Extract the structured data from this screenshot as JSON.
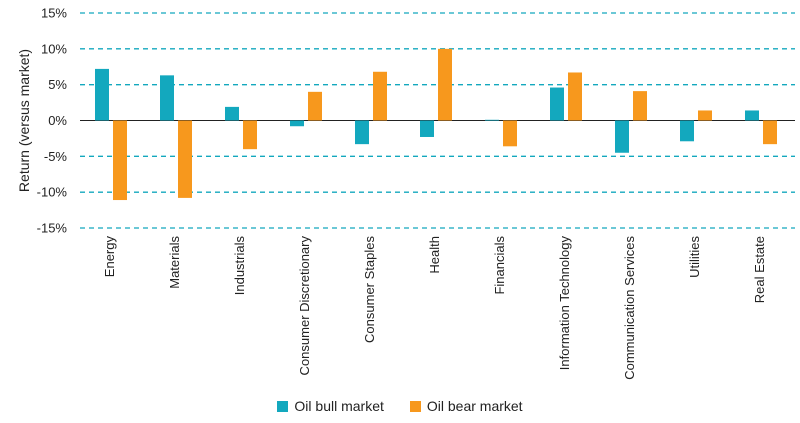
{
  "chart_data": {
    "type": "bar",
    "title": "",
    "xlabel": "",
    "ylabel": "Return (versus market)",
    "ylim": [
      -15,
      15
    ],
    "yticks": [
      15,
      10,
      5,
      0,
      -5,
      -10,
      -15
    ],
    "ytick_labels": [
      "15%",
      "10%",
      "5%",
      "0%",
      "-5%",
      "-10%",
      "-15%"
    ],
    "grid": true,
    "legend_position": "bottom",
    "categories": [
      "Energy",
      "Materials",
      "Industrials",
      "Consumer Discretionary",
      "Consumer Staples",
      "Health",
      "Financials",
      "Information Technology",
      "Communication Services",
      "Utilities",
      "Real Estate"
    ],
    "series": [
      {
        "name": "Oil bull market",
        "color": "#13a8be",
        "values": [
          7.2,
          6.3,
          1.9,
          -0.8,
          -3.3,
          -2.3,
          0.1,
          4.6,
          -4.5,
          -2.9,
          1.4
        ]
      },
      {
        "name": "Oil bear market",
        "color": "#f7981d",
        "values": [
          -11.1,
          -10.8,
          -4.0,
          4.0,
          6.8,
          10.0,
          -3.6,
          6.7,
          4.1,
          1.4,
          -3.3
        ]
      }
    ]
  }
}
